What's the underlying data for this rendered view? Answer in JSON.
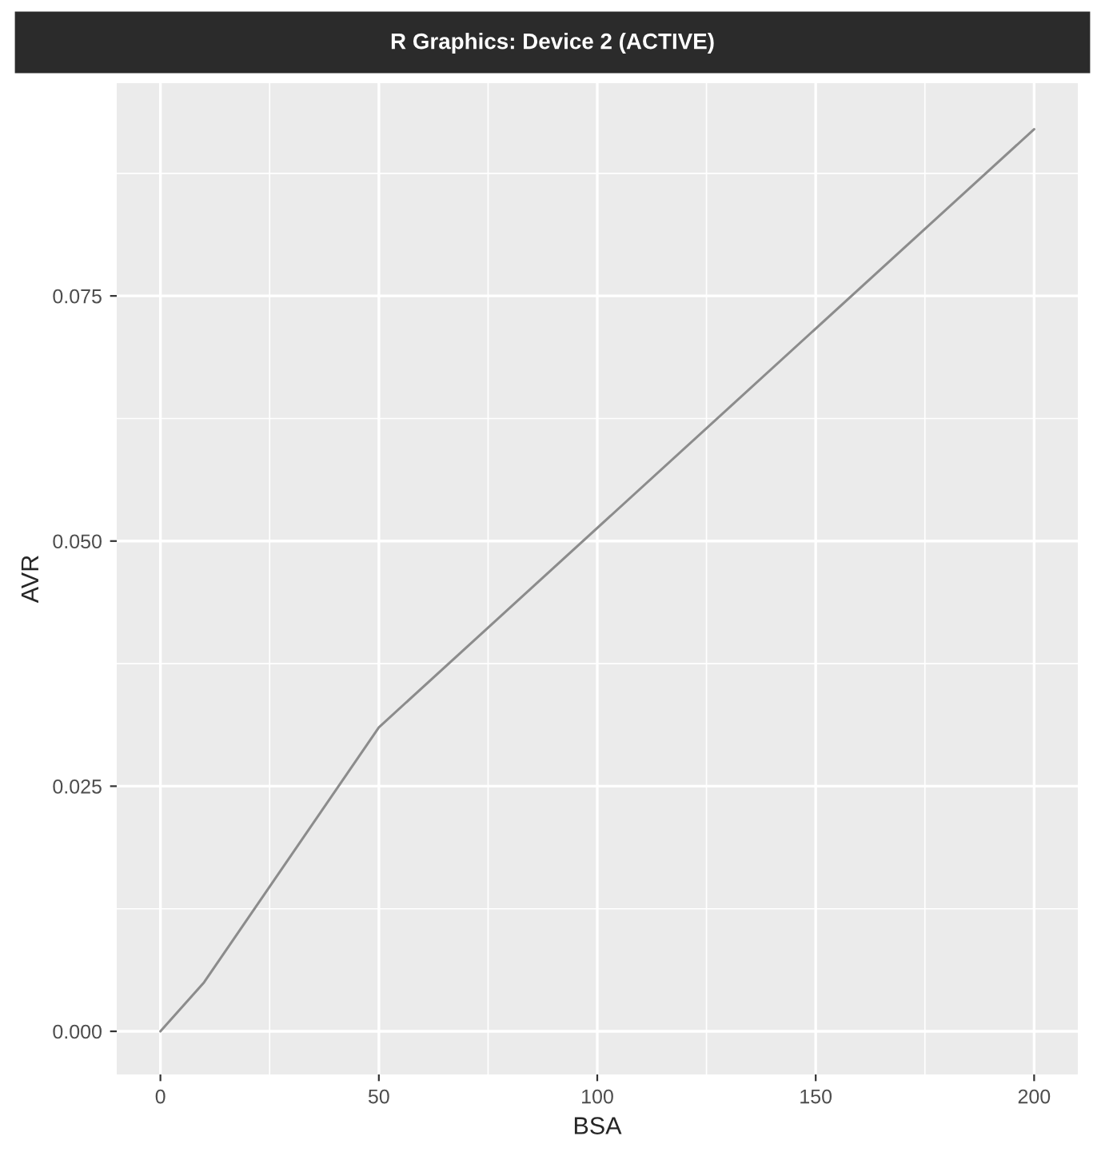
{
  "chart_data": {
    "type": "line",
    "xlabel": "BSA",
    "ylabel": "AVR",
    "annotations": [
      "R Graphics: Device 2 (ACTIVE)"
    ],
    "x": [
      0,
      10,
      50,
      200
    ],
    "series": [
      {
        "color": "#8c8c8c",
        "values": [
          0,
          0.005,
          0.031,
          0.092
        ]
      }
    ],
    "xlim": [
      -10,
      210
    ],
    "ylim": [
      -0.0044,
      0.0967
    ],
    "xticks": [
      0,
      50,
      100,
      150,
      200
    ],
    "yticks": [
      {
        "value": 0,
        "label": "0.000"
      },
      {
        "value": 0.025,
        "label": "0.025"
      },
      {
        "value": 0.05,
        "label": "0.050"
      },
      {
        "value": 0.075,
        "label": "0.075"
      }
    ],
    "grid": true
  }
}
